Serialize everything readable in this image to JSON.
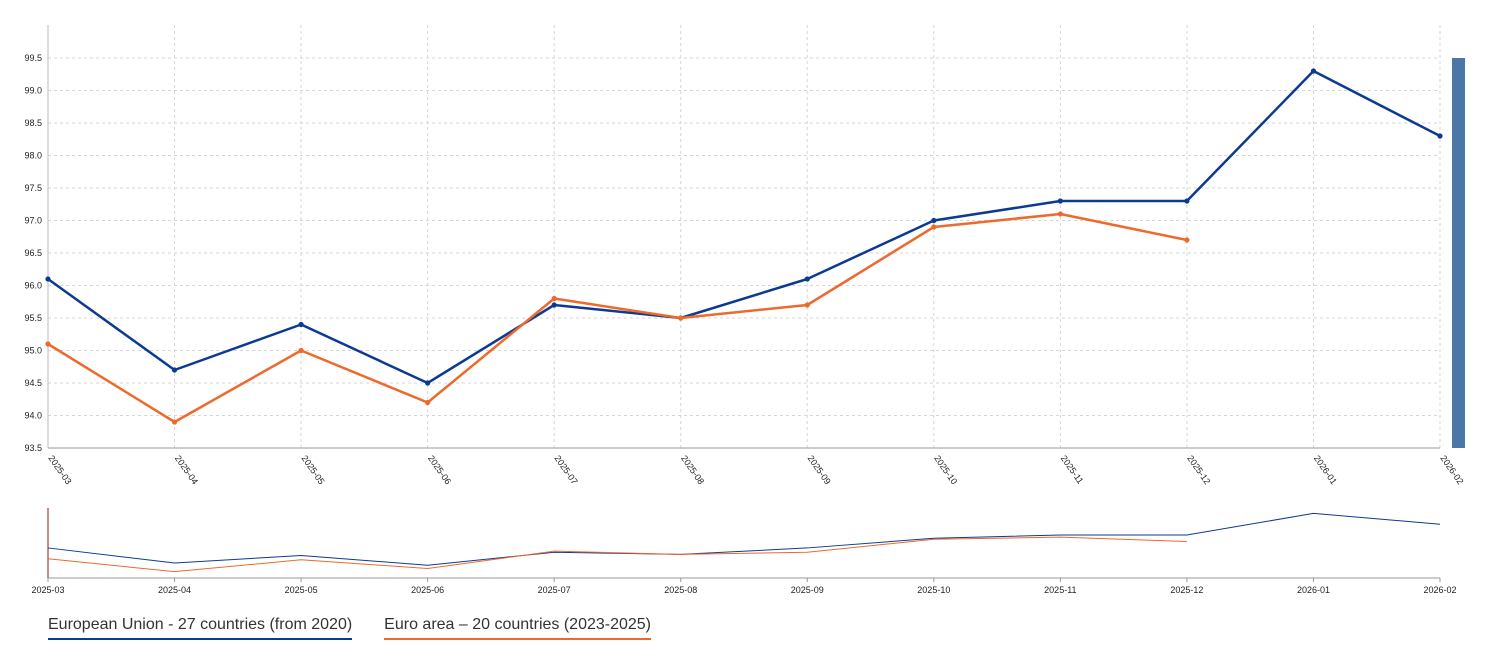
{
  "chart_data": {
    "type": "line",
    "x": [
      "2025-03",
      "2025-04",
      "2025-05",
      "2025-06",
      "2025-07",
      "2025-08",
      "2025-09",
      "2025-10",
      "2025-11",
      "2025-12",
      "2026-01",
      "2026-02"
    ],
    "ylim": [
      93.5,
      99.5
    ],
    "yticks": [
      "93.5",
      "94.0",
      "94.5",
      "95.0",
      "95.5",
      "96.0",
      "96.5",
      "97.0",
      "97.5",
      "98.0",
      "98.5",
      "99.0",
      "99.5"
    ],
    "grid": true,
    "legend_placement": "bottom-left",
    "series": [
      {
        "name": "European Union - 27 countries (from 2020)",
        "color": "#0d3a91",
        "values": [
          96.1,
          94.7,
          95.4,
          94.5,
          95.7,
          95.5,
          96.1,
          97.0,
          97.3,
          97.3,
          99.3,
          98.3
        ]
      },
      {
        "name": "Euro area – 20 countries (2023-2025)",
        "color": "#ee6a2c",
        "values": [
          95.1,
          93.9,
          95.0,
          94.2,
          95.8,
          95.5,
          95.7,
          96.9,
          97.1,
          96.7,
          null,
          null
        ]
      }
    ]
  },
  "navigator": {
    "scrollbar_color": "#4a76a8",
    "handle_color": "#8b1a1a"
  },
  "legend": {
    "items": [
      {
        "label": "European Union - 27 countries (from 2020)",
        "color": "#0d3a91"
      },
      {
        "label": "Euro area – 20 countries (2023-2025)",
        "color": "#ee6a2c"
      }
    ]
  }
}
